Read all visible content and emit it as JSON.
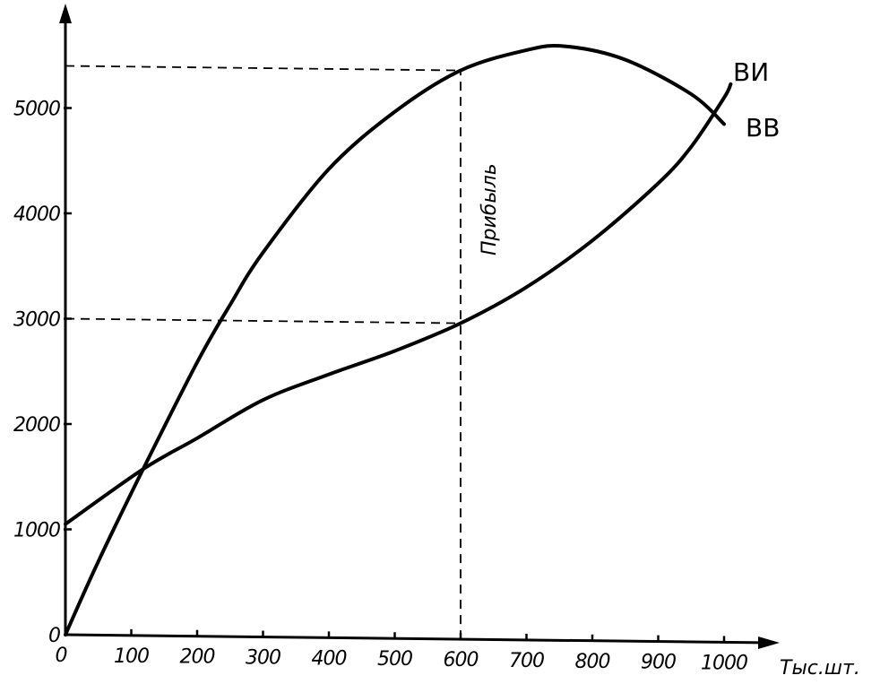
{
  "chart_data": {
    "type": "line",
    "x_unit_label": "Тыс.шт.",
    "xlim": [
      0,
      1050
    ],
    "ylim": [
      0,
      5900
    ],
    "x_ticks": [
      0,
      100,
      200,
      300,
      400,
      500,
      600,
      700,
      800,
      900,
      1000
    ],
    "y_ticks": [
      0,
      1000,
      2000,
      3000,
      4000,
      5000
    ],
    "grid": false,
    "series": [
      {
        "name": "ВВ",
        "points": [
          [
            0,
            0
          ],
          [
            50,
            700
          ],
          [
            118,
            1580
          ],
          [
            200,
            2600
          ],
          [
            250,
            3150
          ],
          [
            300,
            3650
          ],
          [
            400,
            4450
          ],
          [
            500,
            5000
          ],
          [
            600,
            5400
          ],
          [
            700,
            5600
          ],
          [
            760,
            5640
          ],
          [
            850,
            5520
          ],
          [
            950,
            5200
          ],
          [
            1000,
            4920
          ]
        ]
      },
      {
        "name": "ВИ",
        "points": [
          [
            0,
            1050
          ],
          [
            118,
            1580
          ],
          [
            200,
            1880
          ],
          [
            300,
            2250
          ],
          [
            400,
            2500
          ],
          [
            500,
            2730
          ],
          [
            600,
            3000
          ],
          [
            700,
            3350
          ],
          [
            800,
            3800
          ],
          [
            900,
            4350
          ],
          [
            950,
            4700
          ],
          [
            1000,
            5170
          ],
          [
            1010,
            5300
          ]
        ]
      }
    ],
    "reference_lines": [
      {
        "x": 600,
        "y_from": 0,
        "y_to": 5400
      },
      {
        "y": 5400,
        "x_from": 0,
        "x_to": 600
      },
      {
        "y": 3000,
        "x_from": 0,
        "x_to": 600
      }
    ],
    "annotations": [
      {
        "text": "Прибыль",
        "x": 620,
        "y": 4200
      }
    ]
  },
  "colors": {
    "ink": "#000000",
    "background": "#ffffff"
  }
}
